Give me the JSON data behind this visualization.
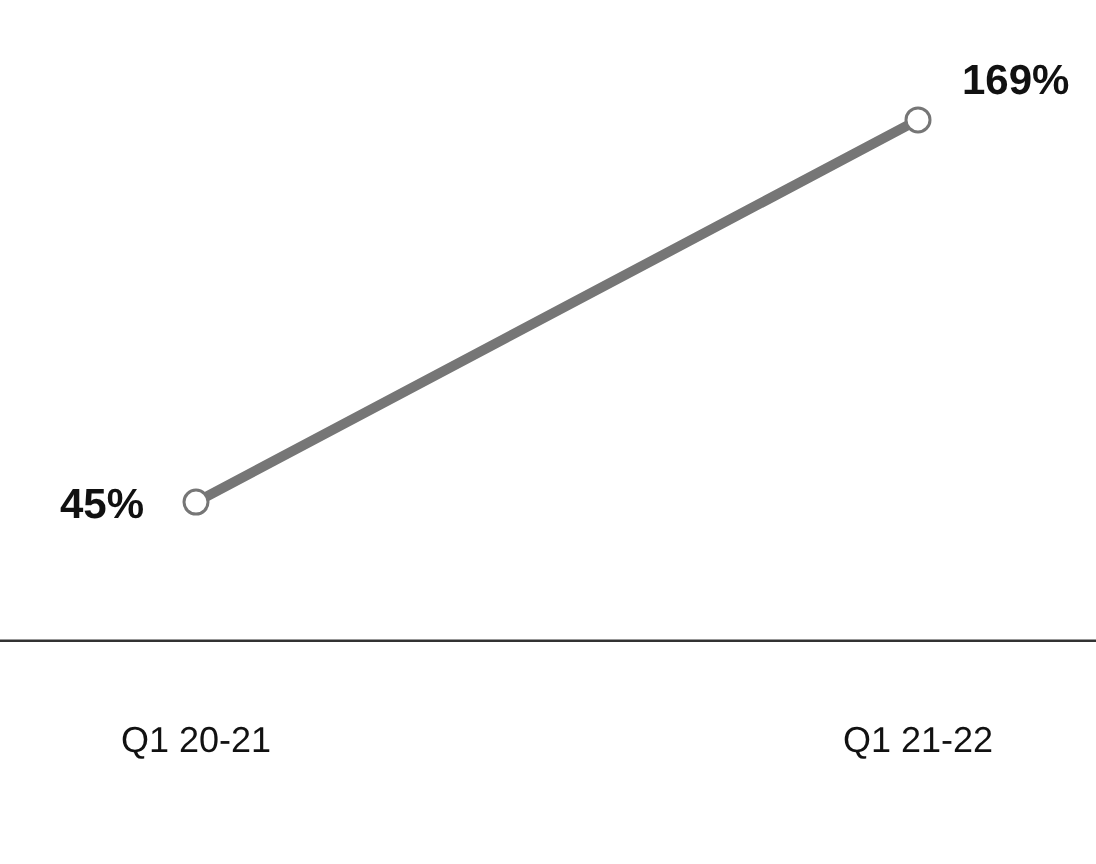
{
  "chart_data": {
    "type": "line",
    "categories": [
      "Q1 20-21",
      "Q1 21-22"
    ],
    "series": [
      {
        "color": "#767676",
        "values": [
          45,
          169
        ],
        "value_labels": [
          "45%",
          "169%"
        ]
      }
    ],
    "marker": "circle",
    "line_style": "solid",
    "grid": false,
    "legend": false,
    "tick_labels": "x"
  }
}
